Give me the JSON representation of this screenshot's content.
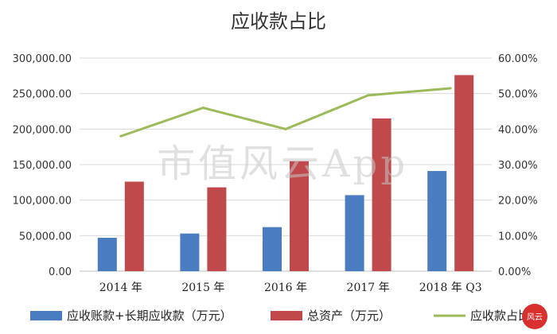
{
  "chart_data": {
    "type": "bar",
    "title": "应收款占比",
    "categories": [
      "2014 年",
      "2015 年",
      "2016 年",
      "2017 年",
      "2018 年 Q3"
    ],
    "series": [
      {
        "name": "应收账款+长期应收款（万元）",
        "type": "bar",
        "axis": "left",
        "color": "#4a7dbf",
        "values": [
          47000,
          53000,
          62000,
          107000,
          141000
        ]
      },
      {
        "name": "总资产（万元）",
        "type": "bar",
        "axis": "left",
        "color": "#c0494b",
        "values": [
          126000,
          118000,
          155000,
          215000,
          276000
        ]
      },
      {
        "name": "应收款占比",
        "type": "line",
        "axis": "right",
        "color": "#9bbb59",
        "values": [
          38,
          46,
          40,
          49.5,
          51.5
        ]
      }
    ],
    "y_left": {
      "min": 0,
      "max": 300000,
      "step": 50000,
      "ticks": [
        "0.00",
        "50,000.00",
        "100,000.00",
        "150,000.00",
        "200,000.00",
        "250,000.00",
        "300,000.00"
      ]
    },
    "y_right": {
      "min": 0,
      "max": 60,
      "step": 10,
      "ticks": [
        "0.00%",
        "10.00%",
        "20.00%",
        "30.00%",
        "40.00%",
        "50.00%",
        "60.00%"
      ]
    },
    "grid": true,
    "legend": "bottom"
  },
  "watermark": "市值风云App",
  "corner_stamp": "风云"
}
